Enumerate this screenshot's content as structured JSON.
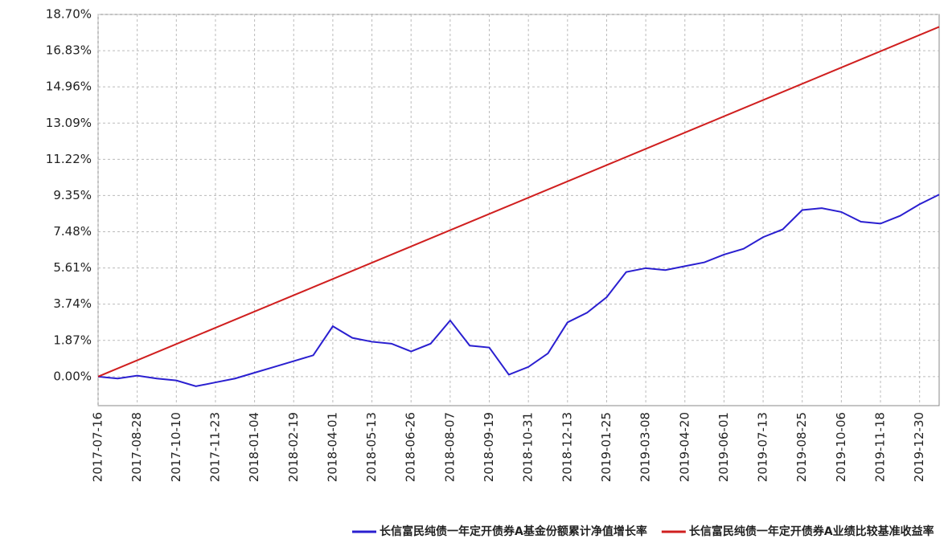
{
  "chart_data": {
    "type": "line",
    "categories": [
      "2017-07-16",
      null,
      "2017-08-28",
      null,
      "2017-10-10",
      null,
      "2017-11-23",
      null,
      "2018-01-04",
      null,
      "2018-02-19",
      null,
      "2018-04-01",
      null,
      "2018-05-13",
      null,
      "2018-06-26",
      null,
      "2018-08-07",
      null,
      "2018-09-19",
      null,
      "2018-10-31",
      null,
      "2018-12-13",
      null,
      "2019-01-25",
      null,
      "2019-03-08",
      null,
      "2019-04-20",
      null,
      "2019-06-01",
      null,
      "2019-07-13",
      null,
      "2019-08-25",
      null,
      "2019-10-06",
      null,
      "2019-11-18",
      null,
      "2019-12-30",
      null
    ],
    "series": [
      {
        "name": "长信富民纯债一年定开债券A基金份额累计净值增长率",
        "color": "#2a1fd0",
        "values": [
          0,
          -0.1,
          0.05,
          -0.1,
          -0.2,
          -0.5,
          -0.3,
          -0.1,
          0.2,
          0.5,
          0.8,
          1.1,
          2.6,
          2.0,
          1.8,
          1.7,
          1.3,
          1.7,
          2.9,
          1.6,
          1.5,
          0.1,
          0.5,
          1.2,
          2.8,
          3.3,
          4.1,
          5.4,
          5.6,
          5.5,
          5.7,
          5.9,
          6.3,
          6.6,
          7.2,
          7.6,
          8.6,
          8.7,
          8.5,
          8.0,
          7.9,
          8.3,
          8.9,
          9.4
        ]
      },
      {
        "name": "长信富民纯债一年定开债券A业绩比较基准收益率",
        "color": "#d01f1f",
        "values": [
          0,
          0.42,
          0.84,
          1.26,
          1.68,
          2.1,
          2.52,
          2.94,
          3.36,
          3.78,
          4.2,
          4.62,
          5.04,
          5.46,
          5.88,
          6.3,
          6.72,
          7.14,
          7.56,
          7.98,
          8.4,
          8.82,
          9.24,
          9.66,
          10.08,
          10.5,
          10.92,
          11.34,
          11.76,
          12.18,
          12.6,
          13.02,
          13.44,
          13.86,
          14.28,
          14.7,
          15.12,
          15.54,
          15.96,
          16.38,
          16.8,
          17.22,
          17.64,
          18.06
        ]
      }
    ],
    "ylim": [
      -1.5,
      18.7
    ],
    "yticks": [
      {
        "value": 0,
        "label": "0.00%"
      },
      {
        "value": 1.87,
        "label": "1.87%"
      },
      {
        "value": 3.74,
        "label": "3.74%"
      },
      {
        "value": 5.61,
        "label": "5.61%"
      },
      {
        "value": 7.48,
        "label": "7.48%"
      },
      {
        "value": 9.35,
        "label": "9.35%"
      },
      {
        "value": 11.22,
        "label": "11.22%"
      },
      {
        "value": 13.09,
        "label": "13.09%"
      },
      {
        "value": 14.96,
        "label": "14.96%"
      },
      {
        "value": 16.83,
        "label": "16.83%"
      },
      {
        "value": 18.7,
        "label": "18.70%"
      }
    ],
    "grid": true,
    "legend": "bottom"
  }
}
